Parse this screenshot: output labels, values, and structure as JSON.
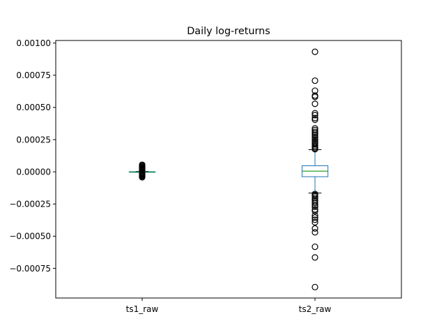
{
  "chart_data": {
    "type": "box",
    "title": "Daily log-returns",
    "xlabel": "",
    "ylabel": "",
    "categories": [
      "ts1_raw",
      "ts2_raw"
    ],
    "ylim": [
      -0.00098,
      0.00102
    ],
    "yticks": [
      -0.00075,
      -0.0005,
      -0.00025,
      0.0,
      0.00025,
      0.0005,
      0.00075,
      0.001
    ],
    "ytick_labels": [
      "−0.00075",
      "−0.00050",
      "−0.00025",
      "0.00000",
      "0.00025",
      "0.00050",
      "0.00075",
      "0.00100"
    ],
    "grid": false,
    "legend": "none",
    "colors": {
      "box": "#1f77b4",
      "median": "#2ca02c",
      "whisker": "#1f77b4",
      "cap": "#000000",
      "flier": "#000000"
    },
    "boxes": [
      {
        "name": "ts1_raw",
        "whislo": -3.5e-06,
        "q1": -1.5e-06,
        "med": 0.0,
        "q3": 1.5e-06,
        "whishi": 3.5e-06,
        "fliers": [
          5.5e-05,
          4.8e-05,
          4.2e-05,
          3.6e-05,
          3e-05,
          2.5e-05,
          2e-05,
          1.5e-05,
          1e-05,
          6e-06,
          -6e-06,
          -1e-05,
          -1.5e-05,
          -2e-05,
          -2.5e-05,
          -3e-05,
          -3.5e-05,
          -4.2e-05
        ]
      },
      {
        "name": "ts2_raw",
        "whislo": -0.000165,
        "q1": -3.8e-05,
        "med": 5e-06,
        "q3": 4.7e-05,
        "whishi": 0.000172,
        "fliers": [
          0.000932,
          0.000708,
          0.00063,
          0.000592,
          0.000582,
          0.000528,
          0.000455,
          0.00044,
          0.000418,
          0.000405,
          0.000338,
          0.000325,
          0.00031,
          0.000298,
          0.000285,
          0.000272,
          0.00026,
          0.000248,
          0.000236,
          0.000225,
          0.000213,
          0.000202,
          0.000192,
          0.000183,
          0.000176,
          -0.000172,
          -0.00018,
          -0.00019,
          -0.000202,
          -0.000214,
          -0.000228,
          -0.000242,
          -0.000258,
          -0.000272,
          -0.000292,
          -0.000305,
          -0.000338,
          -0.000355,
          -0.000372,
          -0.000392,
          -0.00044,
          -0.00047,
          -0.000582,
          -0.000665,
          -0.000895
        ]
      }
    ]
  }
}
